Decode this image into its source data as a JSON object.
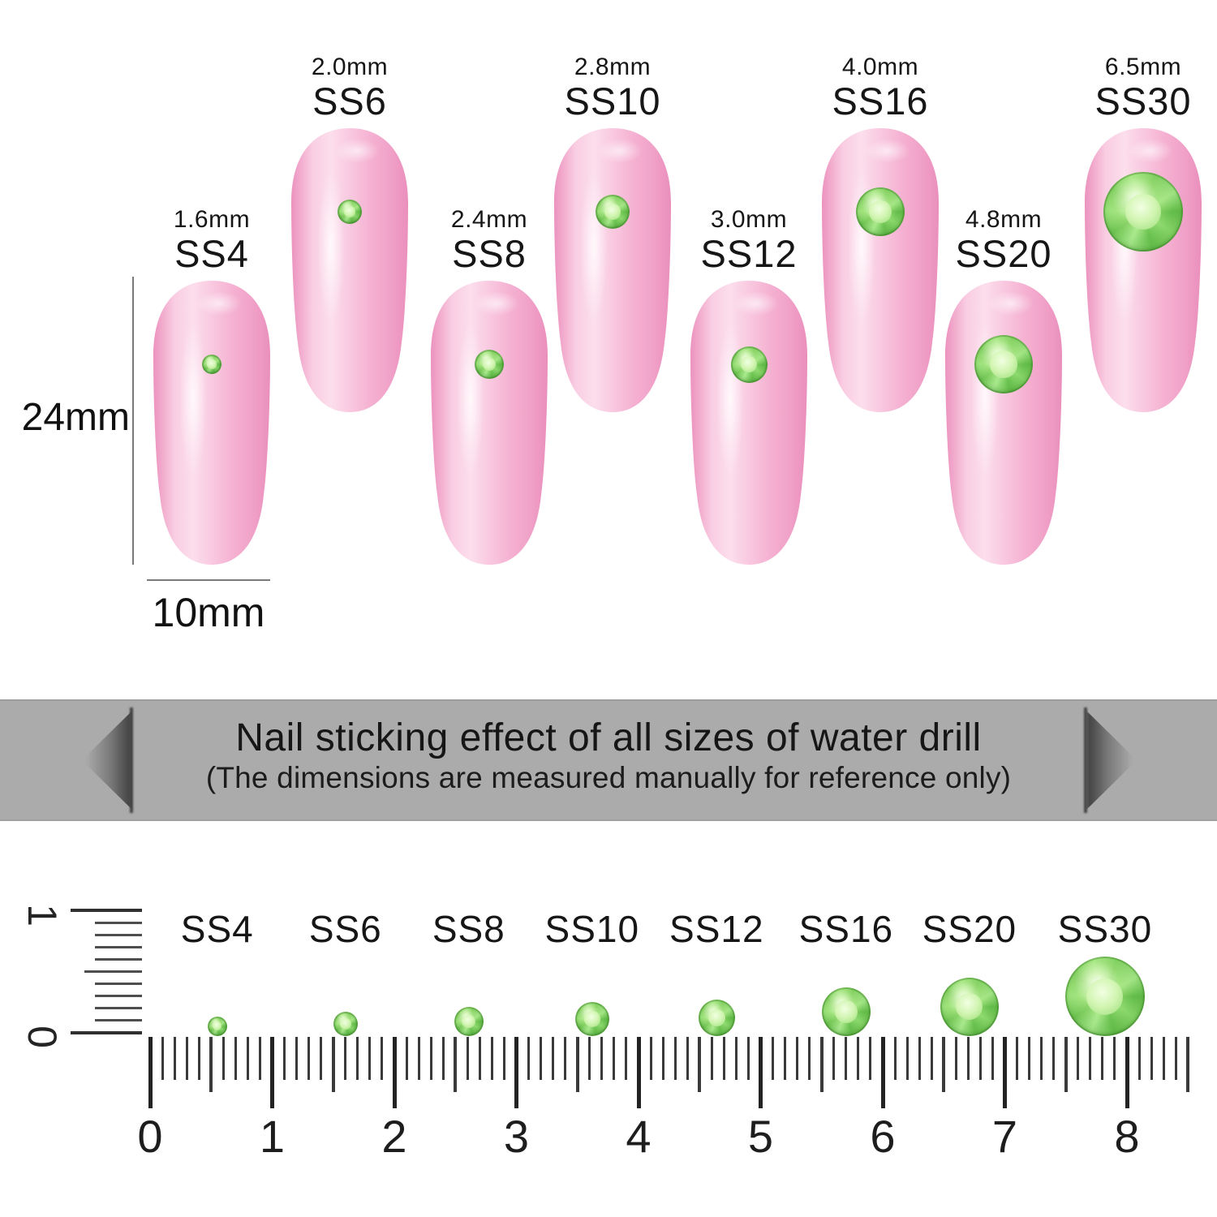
{
  "size_chart": {
    "nails": [
      {
        "ss": "SS4",
        "mm": "1.6mm",
        "size_mm": 1.6,
        "row": "low"
      },
      {
        "ss": "SS6",
        "mm": "2.0mm",
        "size_mm": 2.0,
        "row": "high"
      },
      {
        "ss": "SS8",
        "mm": "2.4mm",
        "size_mm": 2.4,
        "row": "low"
      },
      {
        "ss": "SS10",
        "mm": "2.8mm",
        "size_mm": 2.8,
        "row": "high"
      },
      {
        "ss": "SS12",
        "mm": "3.0mm",
        "size_mm": 3.0,
        "row": "low"
      },
      {
        "ss": "SS16",
        "mm": "4.0mm",
        "size_mm": 4.0,
        "row": "high"
      },
      {
        "ss": "SS20",
        "mm": "4.8mm",
        "size_mm": 4.8,
        "row": "low"
      },
      {
        "ss": "SS30",
        "mm": "6.5mm",
        "size_mm": 6.5,
        "row": "high"
      }
    ],
    "nail_height_label": "24mm",
    "nail_width_label": "10mm"
  },
  "banner": {
    "line1": "Nail sticking effect of all sizes of water drill",
    "line2": "(The dimensions are measured manually for reference only)"
  },
  "ruler": {
    "unit_numbers": [
      "0",
      "1",
      "2",
      "3",
      "4",
      "5",
      "6",
      "7",
      "8"
    ],
    "vertical_top_label": "1",
    "vertical_bottom_label": "0",
    "markers": [
      {
        "ss": "SS4",
        "size_mm": 1.6,
        "position_cm": 0.55
      },
      {
        "ss": "SS6",
        "size_mm": 2.0,
        "position_cm": 1.6
      },
      {
        "ss": "SS8",
        "size_mm": 2.4,
        "position_cm": 2.61
      },
      {
        "ss": "SS10",
        "size_mm": 2.8,
        "position_cm": 3.62
      },
      {
        "ss": "SS12",
        "size_mm": 3.0,
        "position_cm": 4.64
      },
      {
        "ss": "SS16",
        "size_mm": 4.0,
        "position_cm": 5.7
      },
      {
        "ss": "SS20",
        "size_mm": 4.8,
        "position_cm": 6.71
      },
      {
        "ss": "SS30",
        "size_mm": 6.5,
        "position_cm": 7.82
      }
    ]
  },
  "colors": {
    "banner_bg": "#ababab",
    "banner_text": "#161616",
    "nail_pink": "#f6b3d3",
    "nail_highlight": "#fcdeec",
    "nail_edge": "#ee9bc4",
    "gem_green": "#7ccb5f",
    "ink": "#1b1b1b",
    "dim_line": "#7a7a7a"
  }
}
